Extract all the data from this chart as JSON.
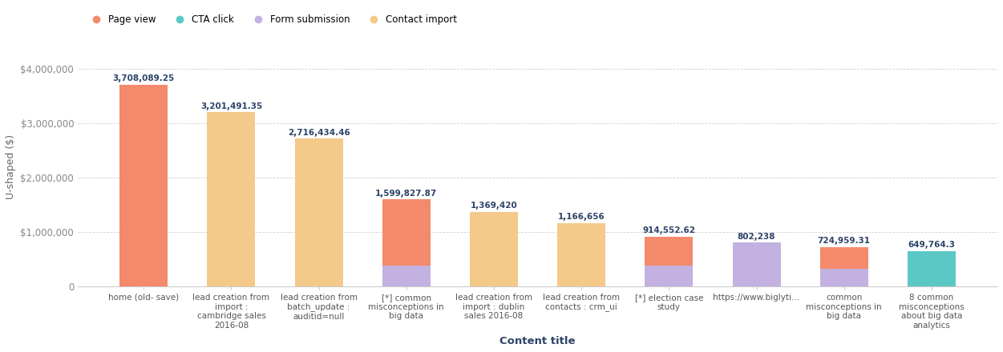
{
  "categories": [
    "home (old- save)",
    "lead creation from\nimport :\ncambridge sales\n2016-08",
    "lead creation from\nbatch_update :\nauditid=null",
    "[*] common\nmisconceptions in\nbig data",
    "lead creation from\nimport : dublin\nsales 2016-08",
    "lead creation from\ncontacts : crm_ui",
    "[*] election case\nstudy",
    "https://www.biglyti...",
    "common\nmisconceptions in\nbig data",
    "8 common\nmisconceptions\nabout big data\nanalytics"
  ],
  "totals": [
    3708089.25,
    3201491.35,
    2716434.46,
    1599827.87,
    1369420,
    1166656,
    914552.62,
    802238,
    724959.31,
    649764.3
  ],
  "total_labels": [
    "3,708,089.25",
    "3,201,491.35",
    "2,716,434.46",
    "1,599,827.87",
    "1,369,420",
    "1,166,656",
    "914,552.62",
    "802,238",
    "724,959.31",
    "649,764.3"
  ],
  "segments": {
    "form_submission": [
      0,
      0,
      0,
      380000,
      0,
      0,
      380000,
      802238,
      320000,
      0
    ],
    "page_view": [
      3708089.25,
      0,
      0,
      1219827.87,
      0,
      0,
      534552.62,
      0,
      404959.31,
      0
    ],
    "contact_import": [
      0,
      3201491.35,
      2716434.46,
      0,
      1369420,
      1166656,
      0,
      0,
      0,
      0
    ],
    "cta_click": [
      0,
      0,
      0,
      0,
      0,
      0,
      0,
      0,
      0,
      649764.3
    ]
  },
  "colors": {
    "form_submission": "#C3B1E1",
    "page_view": "#F4896B",
    "contact_import": "#F5C98A",
    "cta_click": "#5BC8C5"
  },
  "legend_order": [
    "page_view",
    "cta_click",
    "form_submission",
    "contact_import"
  ],
  "legend_labels": [
    "Page view",
    "CTA click",
    "Form submission",
    "Contact import"
  ],
  "stack_order": [
    "form_submission",
    "page_view",
    "contact_import",
    "cta_click"
  ],
  "ylabel": "U-shaped ($)",
  "xlabel": "Content title",
  "ylim": [
    0,
    4400000
  ],
  "yticks": [
    0,
    1000000,
    2000000,
    3000000,
    4000000
  ],
  "ytick_labels": [
    "0",
    "$1,000,000",
    "$2,000,000",
    "$3,000,000",
    "$4,000,000"
  ],
  "bg_color": "#ffffff",
  "grid_color": "#d0d0d0",
  "label_color": "#2d4468",
  "axis_color": "#cccccc"
}
